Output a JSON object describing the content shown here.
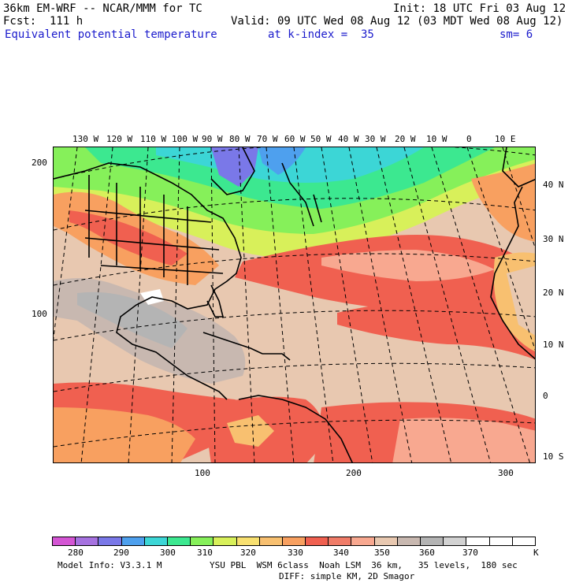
{
  "header": {
    "model": "36km EM-WRF -- NCAR/MMM for TC",
    "init": "Init: 18 UTC Fri 03 Aug 12",
    "fcst": "Fcst:  111 h",
    "valid": "Valid: 09 UTC Wed 08 Aug 12 (03 MDT Wed 08 Aug 12)",
    "field": "Equivalent potential temperature",
    "level": "at k-index =  35",
    "smooth": "sm= 6"
  },
  "map": {
    "lon_labels": [
      "130 W",
      "120 W",
      "110 W",
      "100 W",
      "90 W",
      "80 W",
      "70 W",
      "60 W",
      "50 W",
      "40 W",
      "30 W",
      "20 W",
      "10 W",
      "0",
      "10 E"
    ],
    "lat_labels": [
      "40 N",
      "30 N",
      "20 N",
      "10 N",
      "0",
      "10 S"
    ],
    "left_y_labels": [
      "200",
      "100"
    ],
    "bottom_x_labels": [
      "100",
      "200",
      "300"
    ]
  },
  "colorbar": {
    "unit": "K",
    "labels": [
      "280",
      "290",
      "300",
      "310",
      "320",
      "330",
      "340",
      "350",
      "360",
      "370"
    ],
    "colors": [
      "#d455d4",
      "#a672e0",
      "#7a78e8",
      "#4ea0ee",
      "#3cd6d6",
      "#3ce890",
      "#86f05a",
      "#d8f05a",
      "#f8e070",
      "#f8c070",
      "#f8a060",
      "#f06050",
      "#f07c68",
      "#f8a890",
      "#e8c8b0",
      "#c8b8b0",
      "#b4b4b4",
      "#d2d2d2",
      "#ffffff",
      "#ffffff",
      "#ffffff"
    ]
  },
  "footer": {
    "line1_left": "Model Info: V3.3.1 M",
    "line1_right": "YSU PBL  WSM 6class  Noah LSM  36 km,   35 levels,  180 sec",
    "line2": "DIFF: simple KM, 2D Smagor"
  }
}
